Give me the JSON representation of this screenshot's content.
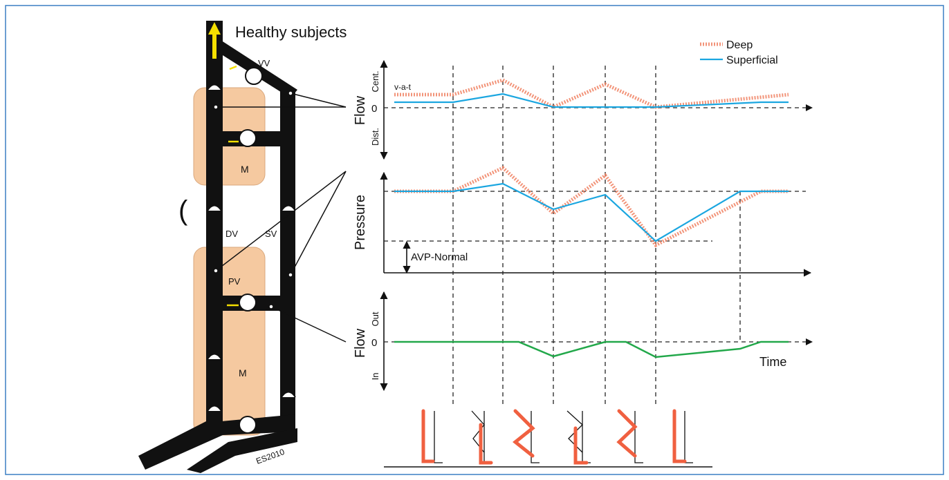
{
  "title": "Healthy subjects",
  "diagram": {
    "vv": "VV",
    "muscle_top": "M",
    "dv": "DV",
    "sv": "SV",
    "pv": "PV",
    "muscle_bottom": "M",
    "bracket": "(",
    "signature": "ES2010"
  },
  "legend": {
    "deep": "Deep",
    "superficial": "Superficial"
  },
  "flow_panel": {
    "axis": "Flow",
    "top": "Cent.",
    "bottom": "Dist.",
    "zero": "0",
    "annotation": "v-a-t"
  },
  "pressure_panel": {
    "axis": "Pressure",
    "annotation": "AVP-Normal"
  },
  "perforator_panel": {
    "axis": "Flow",
    "top": "Out",
    "bottom": "In",
    "zero": "0",
    "x_axis": "Time"
  }
}
